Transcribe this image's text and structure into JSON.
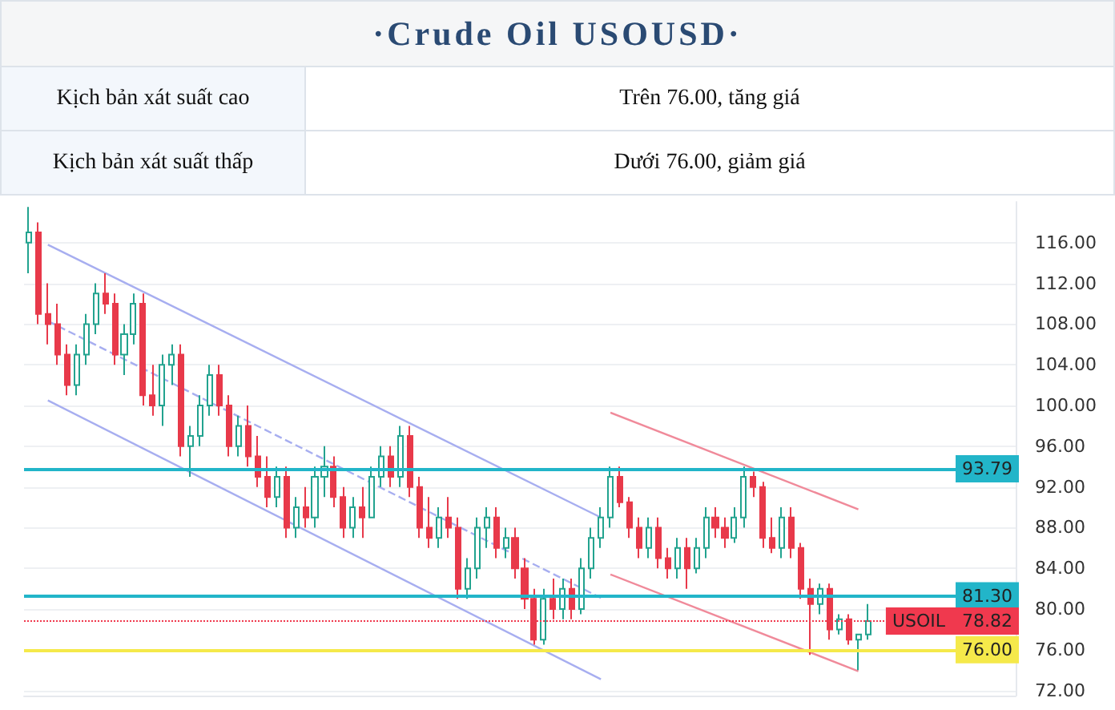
{
  "chart_data": {
    "type": "candlestick",
    "title": "·Crude Oil USOUSD·",
    "annotations": [
      "Kịch bản xát suất cao",
      "Trên 76.00, tăng giá",
      "Kịch bản xát suất thấp",
      "Dưới 76.00, giảm giá"
    ],
    "categories": [
      null,
      null,
      null,
      null,
      null,
      null,
      null,
      null,
      null,
      null,
      null,
      null,
      null,
      null,
      null,
      null,
      null,
      null,
      null,
      null,
      null,
      null,
      null,
      null,
      null,
      null,
      null,
      null,
      null,
      null,
      null,
      null,
      null,
      null,
      null,
      null,
      null,
      null,
      null,
      null,
      null,
      null,
      null,
      null,
      null,
      null,
      null,
      null,
      null,
      null,
      null,
      null,
      null,
      null,
      null,
      null,
      null,
      null,
      null,
      null,
      null,
      null,
      null,
      null,
      null,
      null,
      null,
      null,
      null,
      null,
      null,
      null,
      null,
      null,
      null,
      null,
      null,
      null,
      null,
      null,
      null,
      null,
      null,
      null,
      null,
      null,
      null,
      null,
      null,
      null,
      null,
      null,
      null,
      null,
      null,
      null,
      null,
      null,
      null,
      null,
      null,
      null,
      null,
      null
    ],
    "ohlc": [
      [
        116,
        119.5,
        113,
        117
      ],
      [
        117,
        118,
        108,
        109
      ],
      [
        109,
        112,
        106,
        108
      ],
      [
        108,
        110,
        104,
        105
      ],
      [
        105,
        106,
        101,
        102
      ],
      [
        102,
        106,
        101,
        105
      ],
      [
        105,
        109,
        104,
        108
      ],
      [
        108,
        112,
        107,
        111
      ],
      [
        111,
        113,
        109,
        110
      ],
      [
        110,
        111,
        104,
        105
      ],
      [
        105,
        108,
        103,
        107
      ],
      [
        107,
        111,
        106,
        110
      ],
      [
        110,
        111,
        100,
        101
      ],
      [
        101,
        104,
        99,
        100
      ],
      [
        100,
        105,
        98,
        104
      ],
      [
        104,
        106,
        102,
        105
      ],
      [
        105,
        106,
        95,
        96
      ],
      [
        96,
        98,
        93,
        97
      ],
      [
        97,
        101,
        96,
        100
      ],
      [
        100,
        104,
        99,
        103
      ],
      [
        103,
        104,
        99,
        100
      ],
      [
        100,
        101,
        95,
        96
      ],
      [
        96,
        99,
        95,
        98
      ],
      [
        98,
        100,
        94,
        95
      ],
      [
        95,
        97,
        92,
        93
      ],
      [
        93,
        95,
        90,
        91
      ],
      [
        91,
        94,
        90,
        93
      ],
      [
        93,
        94,
        87,
        88
      ],
      [
        88,
        91,
        87,
        90
      ],
      [
        90,
        92,
        88,
        89
      ],
      [
        89,
        94,
        88,
        93
      ],
      [
        93,
        96,
        91,
        94
      ],
      [
        94,
        95,
        90,
        91
      ],
      [
        91,
        92,
        87,
        88
      ],
      [
        88,
        91,
        87,
        90
      ],
      [
        90,
        92,
        87,
        89
      ],
      [
        89,
        94,
        89,
        93
      ],
      [
        93,
        96,
        92,
        95
      ],
      [
        95,
        96,
        92,
        93
      ],
      [
        93,
        98,
        92,
        97
      ],
      [
        97,
        98,
        91,
        92
      ],
      [
        92,
        93,
        87,
        88
      ],
      [
        88,
        91,
        86,
        87
      ],
      [
        87,
        90,
        86,
        89
      ],
      [
        89,
        91,
        87,
        88
      ],
      [
        88,
        89,
        81,
        82
      ],
      [
        82,
        85,
        81,
        84
      ],
      [
        84,
        89,
        83,
        88
      ],
      [
        88,
        90,
        86,
        89
      ],
      [
        89,
        90,
        85,
        86
      ],
      [
        86,
        88,
        85,
        87
      ],
      [
        87,
        88,
        83,
        84
      ],
      [
        84,
        85,
        80,
        81
      ],
      [
        81,
        82,
        76.5,
        77
      ],
      [
        77,
        82,
        76.5,
        81
      ],
      [
        81,
        83,
        79,
        80
      ],
      [
        80,
        83,
        79,
        82
      ],
      [
        82,
        83,
        79,
        80
      ],
      [
        80,
        85,
        79.5,
        84
      ],
      [
        84,
        88,
        83,
        87
      ],
      [
        87,
        90,
        86,
        89
      ],
      [
        89,
        94,
        88,
        93
      ],
      [
        93,
        94,
        90,
        90.5
      ],
      [
        90.5,
        91,
        87,
        88
      ],
      [
        88,
        89,
        85,
        86
      ],
      [
        86,
        89,
        85,
        88
      ],
      [
        88,
        89,
        84,
        85
      ],
      [
        85,
        86,
        83,
        84
      ],
      [
        84,
        87,
        83,
        86
      ],
      [
        86,
        87,
        82,
        84
      ],
      [
        84,
        87,
        83.5,
        86
      ],
      [
        86,
        90,
        85,
        89
      ],
      [
        89,
        90,
        87,
        88
      ],
      [
        88,
        89,
        86,
        87
      ],
      [
        87,
        90,
        86.5,
        89
      ],
      [
        89,
        94,
        88,
        93
      ],
      [
        93,
        93.5,
        91,
        92
      ],
      [
        92,
        92.5,
        86,
        87
      ],
      [
        87,
        89,
        85.5,
        86
      ],
      [
        86,
        90,
        85,
        89
      ],
      [
        89,
        90,
        85,
        86
      ],
      [
        86,
        86.5,
        81,
        82
      ],
      [
        82,
        83,
        75.5,
        80.5
      ],
      [
        80.5,
        82.5,
        79.5,
        82
      ],
      [
        82,
        82.5,
        77,
        78
      ],
      [
        78,
        79.5,
        77.5,
        79
      ],
      [
        79,
        79.5,
        76.5,
        77
      ],
      [
        77,
        77.5,
        74,
        77.5
      ],
      [
        77.5,
        80.5,
        77,
        78.82
      ],
      null,
      null,
      null,
      null,
      null,
      null,
      null,
      null,
      null,
      null,
      null,
      null,
      null,
      null,
      null
    ],
    "series": [
      {
        "type": "line",
        "color": "#a7aef0",
        "line_style": "solid",
        "values": [
          null,
          null,
          115.8,
          null,
          null,
          null,
          null,
          null,
          null,
          null,
          null,
          null,
          null,
          null,
          null,
          null,
          null,
          null,
          null,
          null,
          null,
          null,
          null,
          null,
          null,
          null,
          null,
          null,
          null,
          null,
          null,
          null,
          null,
          null,
          null,
          null,
          null,
          null,
          null,
          null,
          null,
          null,
          null,
          null,
          null,
          null,
          null,
          null,
          null,
          null,
          null,
          null,
          null,
          null,
          null,
          null,
          null,
          null,
          null,
          null,
          89,
          null,
          null,
          null,
          null,
          null,
          null,
          null,
          null,
          null,
          null,
          null,
          null,
          null,
          null,
          null,
          null,
          null,
          null,
          null,
          null,
          null,
          null,
          null,
          null,
          null,
          null,
          null,
          null,
          null,
          null,
          null,
          null,
          null,
          null,
          null,
          null,
          null,
          null,
          null,
          null,
          null,
          null,
          null
        ]
      },
      {
        "type": "line",
        "color": "#a7aef0",
        "line_style": "dashed",
        "values": [
          null,
          null,
          108.3,
          null,
          null,
          null,
          null,
          null,
          null,
          null,
          null,
          null,
          null,
          null,
          null,
          null,
          null,
          null,
          null,
          null,
          null,
          null,
          null,
          null,
          null,
          null,
          null,
          null,
          null,
          null,
          null,
          null,
          null,
          null,
          null,
          null,
          null,
          null,
          null,
          null,
          null,
          null,
          null,
          null,
          null,
          null,
          null,
          null,
          null,
          null,
          null,
          null,
          null,
          null,
          null,
          null,
          null,
          null,
          null,
          null,
          81.1,
          null,
          null,
          null,
          null,
          null,
          null,
          null,
          null,
          null,
          null,
          null,
          null,
          null,
          null,
          null,
          null,
          null,
          null,
          null,
          null,
          null,
          null,
          null,
          null,
          null,
          null,
          null,
          null,
          null,
          null,
          null,
          null,
          null,
          null,
          null,
          null,
          null,
          null,
          null,
          null,
          null,
          null,
          null
        ]
      },
      {
        "type": "line",
        "color": "#a7aef0",
        "line_style": "solid",
        "values": [
          null,
          null,
          100.5,
          null,
          null,
          null,
          null,
          null,
          null,
          null,
          null,
          null,
          null,
          null,
          null,
          null,
          null,
          null,
          null,
          null,
          null,
          null,
          null,
          null,
          null,
          null,
          null,
          null,
          null,
          null,
          null,
          null,
          null,
          null,
          null,
          null,
          null,
          null,
          null,
          null,
          null,
          null,
          null,
          null,
          null,
          null,
          null,
          null,
          null,
          null,
          null,
          null,
          null,
          null,
          null,
          null,
          null,
          null,
          null,
          null,
          73.1,
          null,
          null,
          null,
          null,
          null,
          null,
          null,
          null,
          null,
          null,
          null,
          null,
          null,
          null,
          null,
          null,
          null,
          null,
          null,
          null,
          null,
          null,
          null,
          null,
          null,
          null,
          null,
          null,
          null,
          null,
          null,
          null,
          null,
          null,
          null,
          null,
          null,
          null,
          null,
          null,
          null,
          null,
          null
        ]
      },
      {
        "type": "line",
        "color": "#f08a9a",
        "line_style": "solid",
        "values": [
          null,
          null,
          null,
          null,
          null,
          null,
          null,
          null,
          null,
          null,
          null,
          null,
          null,
          null,
          null,
          null,
          null,
          null,
          null,
          null,
          null,
          null,
          null,
          null,
          null,
          null,
          null,
          null,
          null,
          null,
          null,
          null,
          null,
          null,
          null,
          null,
          null,
          null,
          null,
          null,
          null,
          null,
          null,
          null,
          null,
          null,
          null,
          null,
          null,
          null,
          null,
          null,
          null,
          null,
          null,
          null,
          null,
          null,
          null,
          null,
          null,
          99.3,
          null,
          null,
          null,
          null,
          null,
          null,
          null,
          null,
          null,
          null,
          null,
          null,
          null,
          null,
          null,
          null,
          null,
          null,
          null,
          null,
          null,
          null,
          null,
          null,
          null,
          89.8,
          null,
          null,
          null,
          null,
          null,
          null,
          null,
          null,
          null,
          null,
          null,
          null,
          null,
          null,
          null,
          null
        ]
      },
      {
        "type": "line",
        "color": "#f08a9a",
        "line_style": "solid",
        "values": [
          null,
          null,
          null,
          null,
          null,
          null,
          null,
          null,
          null,
          null,
          null,
          null,
          null,
          null,
          null,
          null,
          null,
          null,
          null,
          null,
          null,
          null,
          null,
          null,
          null,
          null,
          null,
          null,
          null,
          null,
          null,
          null,
          null,
          null,
          null,
          null,
          null,
          null,
          null,
          null,
          null,
          null,
          null,
          null,
          null,
          null,
          null,
          null,
          null,
          null,
          null,
          null,
          null,
          null,
          null,
          null,
          null,
          null,
          null,
          null,
          null,
          83.4,
          null,
          null,
          null,
          null,
          null,
          null,
          null,
          null,
          null,
          null,
          null,
          null,
          null,
          null,
          null,
          null,
          null,
          null,
          null,
          null,
          null,
          null,
          null,
          null,
          null,
          73.9,
          null,
          null,
          null,
          null,
          null,
          null,
          null,
          null,
          null,
          null,
          null,
          null,
          null,
          null,
          null,
          null
        ]
      }
    ],
    "ref_lines": [
      {
        "axis": "y",
        "value": 93.79,
        "label": "93.79",
        "color": "#22b5c9",
        "line_style": "solid"
      },
      {
        "axis": "y",
        "value": 81.3,
        "label": "81.30",
        "color": "#22b5c9",
        "line_style": "solid"
      },
      {
        "axis": "y",
        "value": 76,
        "label": "76.00",
        "color": "#f5e94a",
        "line_style": "solid"
      },
      {
        "axis": "y",
        "value": 78.82,
        "label": "USOIL   78.82",
        "color": "#f0394e",
        "line_style": "dotted"
      }
    ],
    "ylim": [
      71.5,
      120
    ],
    "yticks": [
      {
        "value": 72,
        "label": "72.00"
      },
      {
        "value": 76,
        "label": "76.00"
      },
      {
        "value": 80,
        "label": "80.00"
      },
      {
        "value": 84,
        "label": "84.00"
      },
      {
        "value": 88,
        "label": "88.00"
      },
      {
        "value": 92,
        "label": "92.00"
      },
      {
        "value": 96,
        "label": "96.00"
      },
      {
        "value": 100,
        "label": "100.00"
      },
      {
        "value": 104,
        "label": "104.00"
      },
      {
        "value": 108,
        "label": "108.00"
      },
      {
        "value": 112,
        "label": "112.00"
      },
      {
        "value": 116,
        "label": "116.00"
      }
    ],
    "grid": "y",
    "tick_labels": "y"
  }
}
